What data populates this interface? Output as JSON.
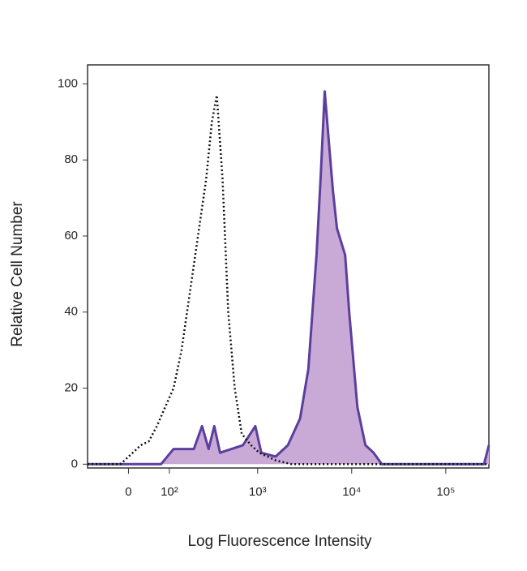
{
  "chart_data": {
    "type": "histogram-overlay",
    "xlabel": "Log Fluorescence Intensity",
    "ylabel": "Relative Cell Number",
    "xscale": "biexponential",
    "xlim": [
      -100,
      287000
    ],
    "xticks": [
      0,
      {
        "value": 100,
        "label": "10²"
      },
      {
        "value": 1000,
        "label": "10³"
      },
      {
        "value": 10000,
        "label": "10⁴"
      },
      {
        "value": 100000,
        "label": "10⁵"
      }
    ],
    "ylim": [
      -1,
      105
    ],
    "yticks": [
      0,
      20,
      40,
      60,
      80,
      100
    ],
    "series": [
      {
        "color": "#5b3f9e",
        "fill": "#c9a9d6",
        "line_style": "solid",
        "x": [
          -100,
          75,
          114,
          202,
          250,
          296,
          342,
          395,
          696,
          944,
          1095,
          1556,
          2100,
          2830,
          3460,
          4230,
          4670,
          5170,
          5710,
          6310,
          6970,
          8520,
          9410,
          11500,
          14000,
          17100,
          20900,
          255000,
          287000
        ],
        "values": [
          0,
          0,
          4,
          4,
          10,
          4,
          10,
          3,
          5,
          10,
          3,
          2,
          5,
          12,
          25,
          55,
          75,
          98,
          85,
          72,
          62,
          55,
          40,
          15,
          5,
          3,
          0,
          0,
          5
        ]
      },
      {
        "color": "#111111",
        "line_style": "dotted",
        "x": [
          -100,
          -17,
          9,
          26,
          44,
          64,
          87,
          114,
          144,
          181,
          225,
          278,
          321,
          364,
          420,
          484,
          569,
          676,
          852,
          1041,
          1556,
          2320,
          287000
        ],
        "values": [
          0,
          0,
          3,
          5,
          6,
          10,
          15,
          20,
          30,
          45,
          60,
          75,
          90,
          97,
          75,
          40,
          20,
          8,
          5,
          3,
          1,
          0,
          0
        ]
      }
    ]
  }
}
